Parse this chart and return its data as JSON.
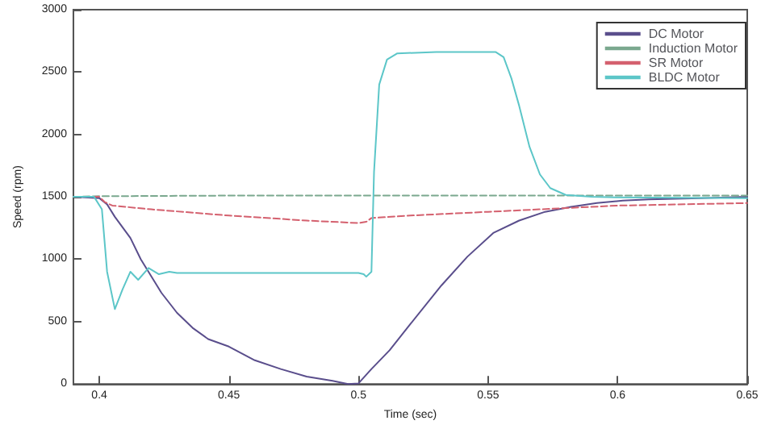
{
  "chart_data": {
    "type": "line",
    "xlabel": "Time (sec)",
    "ylabel": "Speed (rpm)",
    "xlim": [
      0.39,
      0.65
    ],
    "ylim": [
      0,
      3000
    ],
    "xticks": [
      0.4,
      0.45,
      0.5,
      0.55,
      0.6,
      0.65
    ],
    "yticks": [
      0,
      500,
      1000,
      1500,
      2000,
      2500,
      3000
    ],
    "grid": false,
    "legend": "top right",
    "marker": "none",
    "series": [
      {
        "name": "DC Motor",
        "color": "#5a4e8c",
        "line_style": "solid",
        "x": [
          0.39,
          0.4,
          0.403,
          0.406,
          0.412,
          0.416,
          0.424,
          0.43,
          0.436,
          0.442,
          0.45,
          0.46,
          0.47,
          0.48,
          0.49,
          0.496,
          0.5,
          0.505,
          0.512,
          0.52,
          0.532,
          0.542,
          0.552,
          0.562,
          0.572,
          0.582,
          0.592,
          0.602,
          0.612,
          0.632,
          0.65
        ],
        "values": [
          1500,
          1490,
          1440,
          1340,
          1170,
          1000,
          730,
          570,
          450,
          360,
          300,
          190,
          120,
          60,
          25,
          0,
          5,
          120,
          270,
          480,
          790,
          1020,
          1210,
          1310,
          1380,
          1420,
          1450,
          1470,
          1480,
          1490,
          1500
        ]
      },
      {
        "name": "Induction Motor",
        "color": "#7aa88e",
        "line_style": "dashed",
        "x": [
          0.39,
          0.4,
          0.45,
          0.5,
          0.55,
          0.6,
          0.65
        ],
        "values": [
          1500,
          1505,
          1510,
          1510,
          1510,
          1510,
          1510
        ]
      },
      {
        "name": "SR Motor",
        "color": "#d4606e",
        "line_style": "dashed",
        "x": [
          0.39,
          0.4,
          0.402,
          0.405,
          0.41,
          0.42,
          0.45,
          0.48,
          0.5,
          0.503,
          0.505,
          0.52,
          0.55,
          0.58,
          0.6,
          0.65
        ],
        "values": [
          1500,
          1500,
          1460,
          1430,
          1420,
          1400,
          1350,
          1310,
          1290,
          1300,
          1330,
          1350,
          1380,
          1410,
          1430,
          1450
        ]
      },
      {
        "name": "BLDC Motor",
        "color": "#5cc6c8",
        "line_style": "solid",
        "x": [
          0.39,
          0.398,
          0.401,
          0.403,
          0.406,
          0.409,
          0.412,
          0.415,
          0.419,
          0.423,
          0.427,
          0.43,
          0.45,
          0.5,
          0.502,
          0.503,
          0.505,
          0.506,
          0.508,
          0.511,
          0.515,
          0.53,
          0.553,
          0.556,
          0.559,
          0.562,
          0.566,
          0.57,
          0.574,
          0.58,
          0.59,
          0.6,
          0.65
        ],
        "values": [
          1500,
          1500,
          1400,
          900,
          600,
          760,
          900,
          835,
          930,
          880,
          900,
          890,
          890,
          890,
          880,
          860,
          900,
          1700,
          2400,
          2600,
          2650,
          2660,
          2660,
          2620,
          2450,
          2230,
          1900,
          1680,
          1570,
          1515,
          1500,
          1495,
          1490
        ]
      }
    ]
  }
}
